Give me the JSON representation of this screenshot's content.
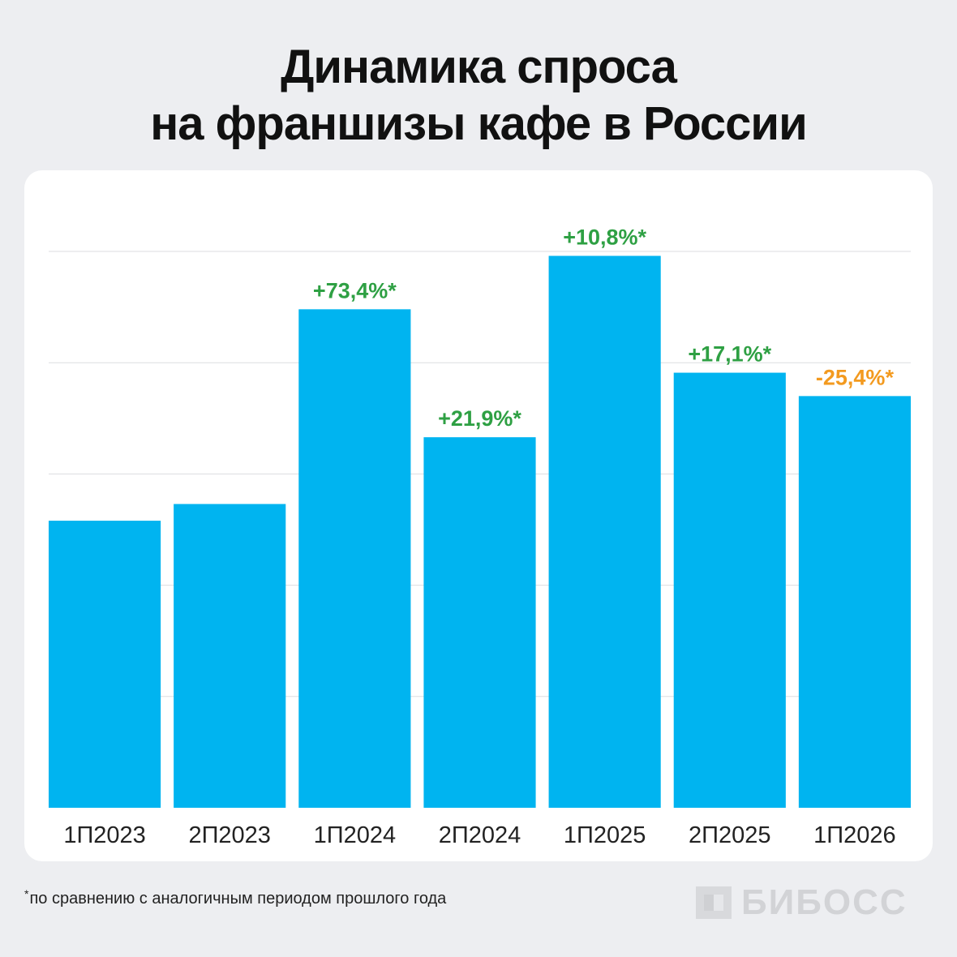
{
  "title": {
    "line1": "Динамика спроса",
    "line2": "на франшизы кафе в России"
  },
  "footnote": {
    "marker": "*",
    "text": "по сравнению с аналогичным периодом прошлого года"
  },
  "logo": {
    "text": "БИБОСС",
    "icon": "biboss-logo-icon"
  },
  "colors": {
    "background": "#edeef1",
    "card": "#ffffff",
    "bar": "#00b4f0",
    "positive": "#2ea043",
    "negative": "#f39a1f",
    "gridline": "#dcdde0",
    "logo": "#d2d3d6"
  },
  "chart_data": {
    "type": "bar",
    "categories": [
      "1П2023",
      "2П2023",
      "1П2024",
      "2П2024",
      "1П2025",
      "2П2025",
      "1П2026"
    ],
    "values": [
      258,
      273,
      448,
      333,
      496,
      391,
      370
    ],
    "data_labels": [
      "",
      "",
      "+73,4%*",
      "+21,9%*",
      "+10,8%*",
      "+17,1%*",
      "-25,4%*"
    ],
    "label_sign": [
      "",
      "",
      "positive",
      "positive",
      "positive",
      "positive",
      "negative"
    ],
    "ylim": [
      0,
      500
    ],
    "y_axis_visible": false,
    "grid": true,
    "title": "",
    "xlabel": "",
    "ylabel": ""
  }
}
